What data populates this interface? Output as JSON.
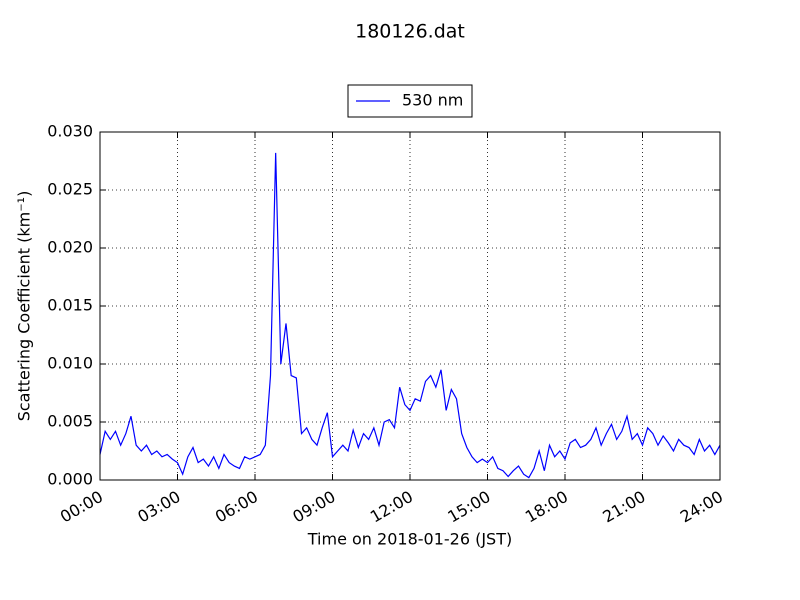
{
  "chart_data": {
    "type": "line",
    "title": "180126.dat",
    "xlabel": "Time on 2018-01-26 (JST)",
    "ylabel": "Scattering Coefficient (km⁻¹)",
    "legend": "upper center",
    "grid": true,
    "xlim": [
      0,
      24
    ],
    "xticks": [
      {
        "value": 0,
        "label": "00:00"
      },
      {
        "value": 3,
        "label": "03:00"
      },
      {
        "value": 6,
        "label": "06:00"
      },
      {
        "value": 9,
        "label": "09:00"
      },
      {
        "value": 12,
        "label": "12:00"
      },
      {
        "value": 15,
        "label": "15:00"
      },
      {
        "value": 18,
        "label": "18:00"
      },
      {
        "value": 21,
        "label": "21:00"
      },
      {
        "value": 24,
        "label": "24:00"
      }
    ],
    "ylim": [
      0,
      0.03
    ],
    "yticks": [
      {
        "value": 0,
        "label": "0.000"
      },
      {
        "value": 0.005,
        "label": "0.005"
      },
      {
        "value": 0.01,
        "label": "0.010"
      },
      {
        "value": 0.015,
        "label": "0.015"
      },
      {
        "value": 0.02,
        "label": "0.020"
      },
      {
        "value": 0.025,
        "label": "0.025"
      },
      {
        "value": 0.03,
        "label": "0.030"
      }
    ],
    "x": [
      0,
      0.2,
      0.4,
      0.6,
      0.8,
      1,
      1.2,
      1.4,
      1.6,
      1.8,
      2,
      2.2,
      2.4,
      2.6,
      2.8,
      3,
      3.2,
      3.4,
      3.6,
      3.8,
      4,
      4.2,
      4.4,
      4.6,
      4.8,
      5,
      5.2,
      5.4,
      5.6,
      5.8,
      6,
      6.2,
      6.4,
      6.6,
      6.8,
      7,
      7.2,
      7.4,
      7.6,
      7.8,
      8,
      8.2,
      8.4,
      8.6,
      8.8,
      9,
      9.2,
      9.4,
      9.6,
      9.8,
      10,
      10.2,
      10.4,
      10.6,
      10.8,
      11,
      11.2,
      11.4,
      11.6,
      11.8,
      12,
      12.2,
      12.4,
      12.6,
      12.8,
      13,
      13.2,
      13.4,
      13.6,
      13.8,
      14,
      14.2,
      14.4,
      14.6,
      14.8,
      15,
      15.2,
      15.4,
      15.6,
      15.8,
      16,
      16.2,
      16.4,
      16.6,
      16.8,
      17,
      17.2,
      17.4,
      17.6,
      17.8,
      18,
      18.2,
      18.4,
      18.6,
      18.8,
      19,
      19.2,
      19.4,
      19.6,
      19.8,
      20,
      20.2,
      20.4,
      20.6,
      20.8,
      21,
      21.2,
      21.4,
      21.6,
      21.8,
      22,
      22.2,
      22.4,
      22.6,
      22.8,
      23,
      23.2,
      23.4,
      23.6,
      23.8,
      24
    ],
    "series": [
      {
        "name": "530 nm",
        "color": "#0000ff",
        "values": [
          0.0022,
          0.0042,
          0.0035,
          0.0042,
          0.003,
          0.004,
          0.0055,
          0.003,
          0.0025,
          0.003,
          0.0022,
          0.0025,
          0.002,
          0.0022,
          0.0018,
          0.0015,
          0.0005,
          0.002,
          0.0028,
          0.0015,
          0.0018,
          0.0012,
          0.002,
          0.001,
          0.0022,
          0.0015,
          0.0012,
          0.001,
          0.002,
          0.0018,
          0.002,
          0.0022,
          0.003,
          0.009,
          0.0282,
          0.01,
          0.0135,
          0.009,
          0.0088,
          0.004,
          0.0045,
          0.0035,
          0.003,
          0.0045,
          0.0058,
          0.002,
          0.0025,
          0.003,
          0.0025,
          0.0043,
          0.0028,
          0.004,
          0.0035,
          0.0045,
          0.003,
          0.005,
          0.0052,
          0.0045,
          0.008,
          0.0065,
          0.006,
          0.007,
          0.0068,
          0.0085,
          0.009,
          0.008,
          0.0095,
          0.006,
          0.0078,
          0.007,
          0.004,
          0.0028,
          0.002,
          0.0015,
          0.0018,
          0.0015,
          0.002,
          0.001,
          0.0008,
          0.0003,
          0.0008,
          0.0012,
          0.0005,
          0.0002,
          0.001,
          0.0025,
          0.0008,
          0.003,
          0.002,
          0.0025,
          0.0018,
          0.0032,
          0.0035,
          0.0028,
          0.003,
          0.0035,
          0.0045,
          0.003,
          0.004,
          0.0048,
          0.0035,
          0.0042,
          0.0055,
          0.0035,
          0.004,
          0.003,
          0.0045,
          0.004,
          0.003,
          0.0038,
          0.0032,
          0.0025,
          0.0035,
          0.003,
          0.0028,
          0.0022,
          0.0035,
          0.0025,
          0.003,
          0.0022,
          0.003
        ]
      }
    ]
  }
}
